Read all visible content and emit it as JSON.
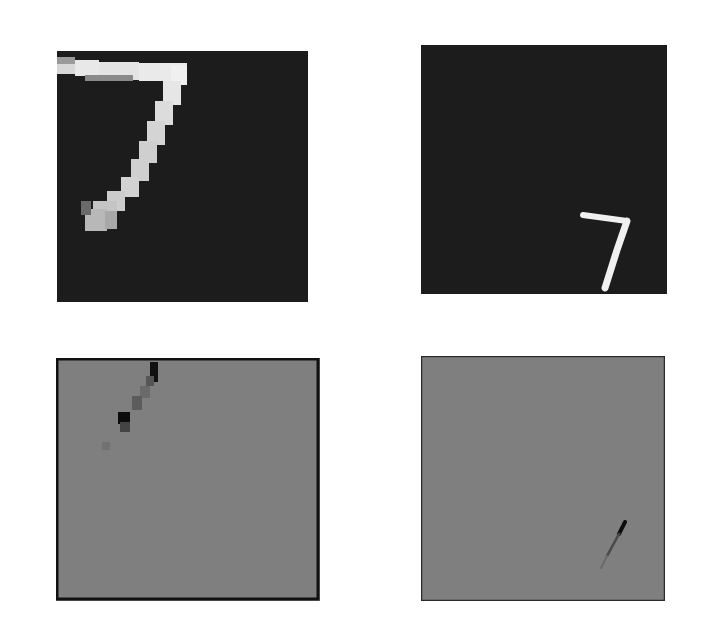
{
  "figure": {
    "background": "#ffffff",
    "panels": [
      {
        "id": "top-left",
        "kind": "digit-image",
        "digit": "7",
        "background": "#1c1c1c",
        "stroke": "#e6e6e6"
      },
      {
        "id": "top-right",
        "kind": "digit-image",
        "digit": "7",
        "background": "#1c1c1c",
        "stroke": "#f2f2f2"
      },
      {
        "id": "bottom-left",
        "kind": "difference-map",
        "background": "#7f7f7f",
        "frame": "#111111"
      },
      {
        "id": "bottom-right",
        "kind": "difference-map",
        "background": "#7f7f7f",
        "frame": "#2a2a2a"
      }
    ]
  }
}
